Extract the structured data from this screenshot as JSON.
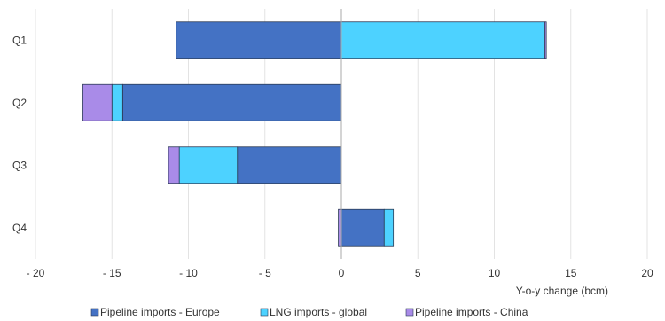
{
  "chart_data": {
    "type": "bar",
    "orientation": "horizontal",
    "stacked": true,
    "categories": [
      "Q1",
      "Q2",
      "Q3",
      "Q4"
    ],
    "series": [
      {
        "name": "Pipeline imports - Europe",
        "color": "#4472C4",
        "values": [
          -10.8,
          -14.3,
          -6.8,
          2.8
        ]
      },
      {
        "name": "LNG imports - global",
        "color": "#4DD2FF",
        "values": [
          13.3,
          -0.7,
          -3.8,
          0.6
        ]
      },
      {
        "name": "Pipeline imports - China",
        "color": "#A98BE8",
        "values": [
          0.1,
          -1.9,
          -0.7,
          -0.2
        ]
      }
    ],
    "xlim": [
      -20,
      20
    ],
    "xticks": [
      -20,
      -15,
      -10,
      -5,
      0,
      5,
      10,
      15,
      20
    ],
    "xtick_labels": [
      "- 20",
      "- 15",
      "- 10",
      "- 5",
      "0",
      "5",
      "10",
      "15",
      "20"
    ],
    "xlabel": "Y-o-y change (bcm)",
    "ylabel": "",
    "title": "",
    "grid": "vertical",
    "legend_position": "bottom"
  }
}
